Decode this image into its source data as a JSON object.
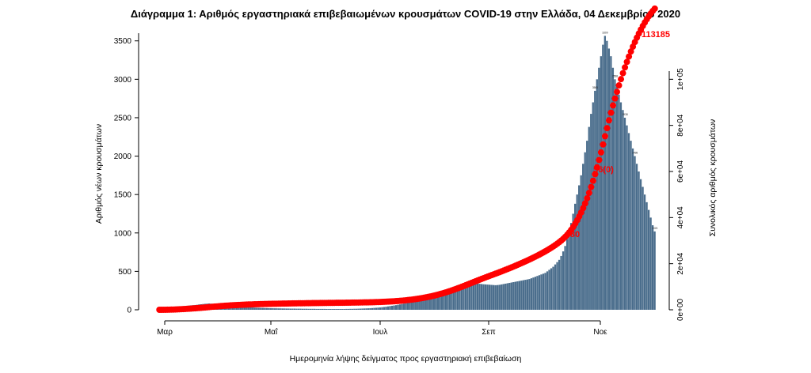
{
  "chart_data": {
    "type": "bar",
    "title": "Διάγραμμα 1: Αριθμός εργαστηριακά επιβεβαιωμένων κρουσμάτων COVID-19 στην Ελλάδα, 04 Δεκεμβρίου 2020",
    "xlabel": "Ημερομηνία λήψης δείγματος προς εργαστηριακή επιβεβαίωση",
    "ylabel": "Αριθμός νέων κρουσμάτων",
    "ylabel_right": "Συνολικός αριθμός κρουσμάτων",
    "ylim": [
      0,
      3600
    ],
    "ylim_right": [
      0,
      120000
    ],
    "yticks": [
      "0",
      "500",
      "1000",
      "1500",
      "2000",
      "2500",
      "3000",
      "3500"
    ],
    "yticks_right": [
      "0e+00",
      "2e+04",
      "4e+04",
      "6e+04",
      "8e+04",
      "1e+05"
    ],
    "xticks": [
      "Μαρ",
      "Μαΐ",
      "Ιουλ",
      "Σεπ",
      "Νοε"
    ],
    "grid": false,
    "legend": "none",
    "bar_color": "#4a6d8c",
    "line_color": "#ff0000",
    "series": [
      {
        "type": "bar",
        "values": [
          2,
          3,
          5,
          8,
          12,
          20,
          25,
          30,
          35,
          40,
          42,
          45,
          47,
          48,
          50,
          55,
          58,
          60,
          62,
          65,
          70,
          72,
          75,
          78,
          80,
          82,
          80,
          78,
          75,
          72,
          70,
          68,
          65,
          62,
          60,
          58,
          55,
          52,
          50,
          48,
          45,
          42,
          40,
          38,
          36,
          34,
          32,
          30,
          28,
          27,
          26,
          25,
          24,
          23,
          22,
          21,
          20,
          20,
          19,
          19,
          18,
          18,
          17,
          17,
          16,
          16,
          15,
          15,
          15,
          14,
          14,
          14,
          13,
          13,
          13,
          12,
          12,
          12,
          12,
          11,
          11,
          11,
          11,
          11,
          10,
          10,
          10,
          10,
          10,
          10,
          10,
          10,
          10,
          10,
          11,
          11,
          12,
          12,
          13,
          13,
          14,
          15,
          16,
          17,
          18,
          19,
          20,
          22,
          24,
          26,
          28,
          30,
          33,
          36,
          40,
          44,
          48,
          52,
          56,
          60,
          65,
          70,
          75,
          80,
          86,
          92,
          98,
          105,
          112,
          120,
          128,
          136,
          145,
          154,
          163,
          172,
          182,
          192,
          202,
          212,
          222,
          232,
          242,
          252,
          262,
          272,
          282,
          292,
          300,
          310,
          320,
          325,
          330,
          335,
          340,
          345,
          350,
          348,
          345,
          342,
          340,
          338,
          335,
          332,
          330,
          328,
          326,
          324,
          322,
          320,
          322,
          325,
          330,
          335,
          340,
          345,
          350,
          355,
          360,
          365,
          370,
          375,
          380,
          385,
          390,
          395,
          400,
          410,
          420,
          430,
          440,
          450,
          460,
          470,
          480,
          500,
          520,
          540,
          560,
          590,
          620,
          650,
          700,
          760,
          830,
          920,
          1020,
          1130,
          1250,
          1380,
          1500,
          1620,
          1750,
          1900,
          2050,
          2200,
          2380,
          2550,
          2700,
          2850,
          3000,
          3150,
          3300,
          3450,
          3565,
          3500,
          3400,
          3300,
          3150,
          3000,
          2900,
          2800,
          2700,
          2600,
          2500,
          2400,
          2300,
          2200,
          2100,
          2000,
          1900,
          1800,
          1700,
          1600,
          1500,
          1400,
          1300,
          1200,
          1100,
          1020
        ]
      },
      {
        "type": "line",
        "name": "",
        "y_axis": "right",
        "values": [
          2,
          5,
          10,
          18,
          30,
          50,
          75,
          105,
          140,
          180,
          222,
          267,
          314,
          362,
          412,
          467,
          525,
          585,
          647,
          712,
          782,
          854,
          929,
          1007,
          1087,
          1169,
          1249,
          1327,
          1402,
          1474,
          1544,
          1612,
          1677,
          1739,
          1799,
          1857,
          1912,
          1964,
          2014,
          2062,
          2107,
          2149,
          2189,
          2227,
          2263,
          2297,
          2329,
          2359,
          2387,
          2414,
          2440,
          2465,
          2489,
          2512,
          2534,
          2555,
          2575,
          2595,
          2614,
          2633,
          2651,
          2669,
          2686,
          2703,
          2719,
          2735,
          2750,
          2765,
          2780,
          2794,
          2808,
          2822,
          2835,
          2848,
          2861,
          2873,
          2885,
          2897,
          2909,
          2920,
          2931,
          2942,
          2953,
          2964,
          2974,
          2984,
          2994,
          3004,
          3014,
          3024,
          3034,
          3044,
          3054,
          3064,
          3075,
          3086,
          3098,
          3110,
          3123,
          3136,
          3150,
          3165,
          3181,
          3198,
          3216,
          3235,
          3255,
          3277,
          3301,
          3327,
          3355,
          3385,
          3418,
          3454,
          3494,
          3538,
          3586,
          3638,
          3694,
          3754,
          3819,
          3889,
          3964,
          4044,
          4130,
          4222,
          4320,
          4425,
          4537,
          4657,
          4785,
          4921,
          5066,
          5220,
          5383,
          5555,
          5737,
          5929,
          6131,
          6343,
          6565,
          6797,
          7039,
          7291,
          7553,
          7825,
          8107,
          8399,
          8699,
          9009,
          9329,
          9654,
          9984,
          10319,
          10659,
          11004,
          11354,
          11702,
          12047,
          12389,
          12729,
          13067,
          13402,
          13734,
          14064,
          14392,
          14718,
          15042,
          15364,
          15684,
          16006,
          16331,
          16661,
          16996,
          17336,
          17681,
          18031,
          18386,
          18746,
          19111,
          19481,
          19856,
          20236,
          20621,
          21011,
          21406,
          21806,
          22216,
          22636,
          23066,
          23506,
          23956,
          24416,
          24886,
          25366,
          25866,
          26386,
          26926,
          27486,
          28076,
          28696,
          29346,
          30046,
          30806,
          31636,
          32556,
          33576,
          34706,
          35956,
          37336,
          38836,
          40456,
          42206,
          44106,
          46156,
          48356,
          50736,
          53286,
          55986,
          58836,
          61836,
          64986,
          68286,
          71736,
          75301,
          78801,
          82201,
          85501,
          88651,
          91651,
          94551,
          97351,
          100051,
          102651,
          105151,
          107551,
          109851,
          112051,
          114151,
          116151,
          118051,
          119851,
          121551,
          123151,
          124651,
          126051,
          127351,
          128551,
          129651,
          130671
        ]
      }
    ],
    "annotations": [
      {
        "text": "113185",
        "color": "#ff0000"
      },
      {
        "text": "56(0)",
        "color": "#ff0000"
      },
      {
        "text": "280",
        "color": "#ff0000"
      }
    ],
    "bar_labels": [
      "3565",
      "3309",
      "2568",
      "1938",
      "1498",
      "1023"
    ]
  }
}
